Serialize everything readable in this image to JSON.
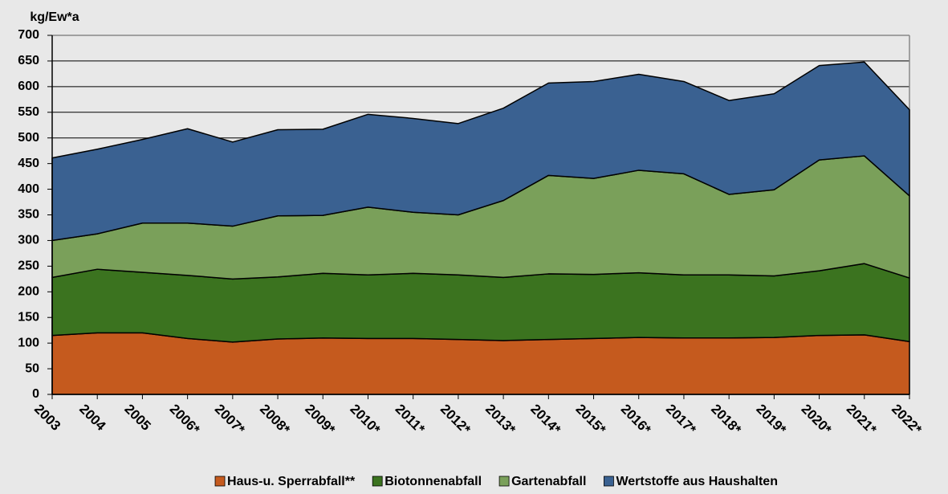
{
  "chart_data": {
    "type": "stacked_area",
    "y_label": "kg/Ew*a",
    "categories": [
      "2003",
      "2004",
      "2005",
      "2006*",
      "2007*",
      "2008*",
      "2009*",
      "2010*",
      "2011*",
      "2012*",
      "2013*",
      "2014*",
      "2015*",
      "2016*",
      "2017*",
      "2018*",
      "2019*",
      "2020*",
      "2021*",
      "2022*"
    ],
    "series": [
      {
        "name": "Haus-u. Sperrabfall**",
        "color": "#c55a1e",
        "values": [
          115,
          120,
          120,
          109,
          102,
          108,
          110,
          109,
          109,
          107,
          105,
          107,
          109,
          111,
          110,
          110,
          111,
          115,
          116,
          103
        ]
      },
      {
        "name": "Biotonnenabfall",
        "color": "#3b731f",
        "values": [
          113,
          124,
          118,
          123,
          123,
          121,
          126,
          124,
          127,
          126,
          123,
          128,
          125,
          126,
          123,
          123,
          120,
          126,
          139,
          124
        ]
      },
      {
        "name": "Gartenabfall",
        "color": "#7aa05a",
        "values": [
          72,
          69,
          96,
          102,
          103,
          119,
          113,
          132,
          119,
          117,
          150,
          192,
          187,
          200,
          197,
          157,
          168,
          216,
          210,
          160
        ]
      },
      {
        "name": "Wertstoffe aus Haushalten",
        "color": "#3a6191",
        "values": [
          161,
          165,
          163,
          184,
          164,
          168,
          168,
          181,
          183,
          178,
          180,
          180,
          189,
          187,
          180,
          183,
          187,
          184,
          183,
          168
        ]
      }
    ],
    "ylim": [
      0,
      700
    ],
    "yticks": [
      0,
      50,
      100,
      150,
      200,
      250,
      300,
      350,
      400,
      450,
      500,
      550,
      600,
      650,
      700
    ],
    "grid": true,
    "legend": "bottom"
  }
}
